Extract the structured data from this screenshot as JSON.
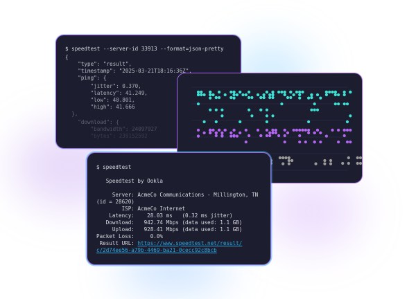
{
  "json_terminal": {
    "lines": [
      "$ speedtest --server-id 33913 --format=json-pretty",
      "{",
      "    \"type\": \"result\",",
      "    \"timestamp\": \"2025-03-21T18:16:36Z\",",
      "    \"ping\": {",
      "        \"jitter\": 0.370,",
      "        \"latency\": 41.249,",
      "        \"low\": 40.801,",
      "        \"high\": 41.666",
      "  },",
      "    \"download\": {",
      "        \"bandwidth\": 24097927",
      "        \"bytes\": 239152592"
    ]
  },
  "chart_window": {
    "colors": {
      "top": "#3ee0d4",
      "middle": "#b266f0",
      "bottom": "#9a9a9a"
    }
  },
  "cli_terminal": {
    "command": "$ speedtest",
    "header": "   Speedtest by Ookla",
    "lines": [
      "     Server: AcmeCo Communications - Millington, TN",
      "(id = 28620)",
      "        ISP: AcmeCo Internet",
      "    Latency:    28.03 ms   (0.32 ms jitter)",
      "   Download:   942.74 Mbps (data used: 1.1 GB)",
      "     Upload:   928.41 Mbps (data used: 1.1 GB)",
      "Packet Loss:     0.0%"
    ],
    "result_label": " Result URL: ",
    "result_url_1": "https://www.speedtest.net/result/",
    "result_url_2": "c/2d74ee56-a79b-4469-ba21-0cecc92c8bcb"
  }
}
